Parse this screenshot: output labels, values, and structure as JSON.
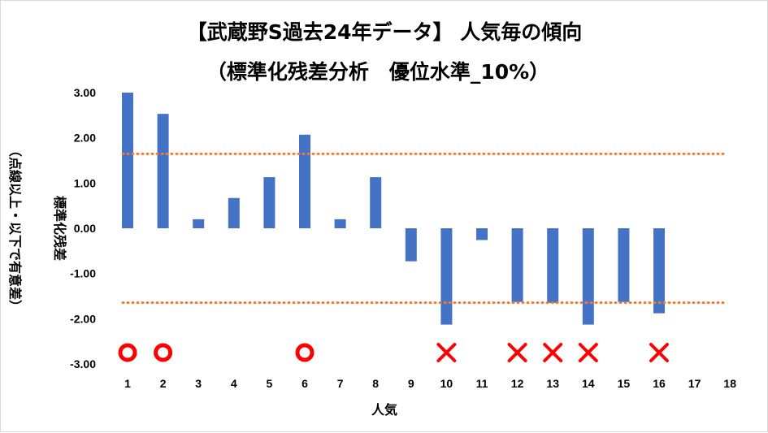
{
  "chart_data": {
    "type": "bar",
    "title": "【武蔵野S過去24年データ】 人気毎の傾向",
    "subtitle": "（標準化残差分析　優位水準_10%）",
    "xlabel": "人気",
    "ylabel": "標準化残差",
    "ylabel_note": "（点線以上・以下で有意差）",
    "categories": [
      "1",
      "2",
      "3",
      "4",
      "5",
      "6",
      "7",
      "8",
      "9",
      "10",
      "11",
      "12",
      "13",
      "14",
      "15",
      "16",
      "17",
      "18"
    ],
    "values": [
      3.0,
      2.53,
      0.2,
      0.67,
      1.13,
      2.07,
      0.2,
      1.13,
      -0.73,
      -2.13,
      -0.26,
      -1.63,
      -1.65,
      -2.13,
      -1.63,
      -1.88,
      null,
      null
    ],
    "ylim": [
      -3.0,
      3.0
    ],
    "yticks": [
      "3.00",
      "2.00",
      "1.00",
      "0.00",
      "-1.00",
      "-2.00",
      "-3.00"
    ],
    "threshold_upper": 1.645,
    "threshold_lower": -1.645,
    "markers": [
      {
        "category": "1",
        "type": "circle"
      },
      {
        "category": "2",
        "type": "circle"
      },
      {
        "category": "6",
        "type": "circle"
      },
      {
        "category": "10",
        "type": "cross"
      },
      {
        "category": "12",
        "type": "cross"
      },
      {
        "category": "13",
        "type": "cross"
      },
      {
        "category": "14",
        "type": "cross"
      },
      {
        "category": "16",
        "type": "cross"
      }
    ],
    "grid": false,
    "legend": "none",
    "colors": {
      "bar": "#4472c4",
      "threshold": "#ed7d31",
      "circle": "#ff0000",
      "cross": "#ff0000"
    }
  }
}
